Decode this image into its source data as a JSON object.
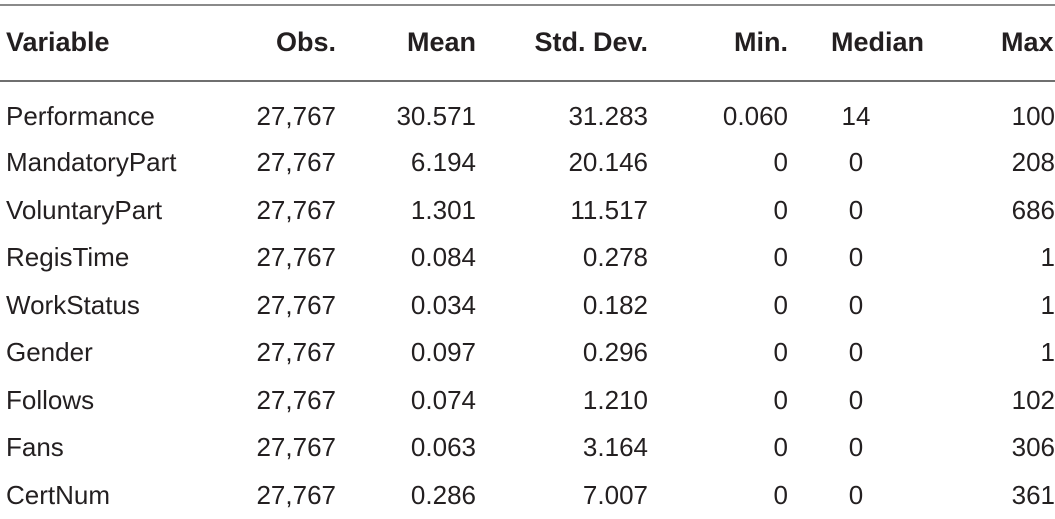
{
  "table": {
    "columns": [
      "Variable",
      "Obs.",
      "Mean",
      "Std. Dev.",
      "Min.",
      "Median",
      "Max."
    ],
    "rows": [
      [
        "Performance",
        "27,767",
        "30.571",
        "31.283",
        "0.060",
        "14",
        "100"
      ],
      [
        "MandatoryPart",
        "27,767",
        "6.194",
        "20.146",
        "0",
        "0",
        "208"
      ],
      [
        "VoluntaryPart",
        "27,767",
        "1.301",
        "11.517",
        "0",
        "0",
        "686"
      ],
      [
        "RegisTime",
        "27,767",
        "0.084",
        "0.278",
        "0",
        "0",
        "1"
      ],
      [
        "WorkStatus",
        "27,767",
        "0.034",
        "0.182",
        "0",
        "0",
        "1"
      ],
      [
        "Gender",
        "27,767",
        "0.097",
        "0.296",
        "0",
        "0",
        "1"
      ],
      [
        "Follows",
        "27,767",
        "0.074",
        "1.210",
        "0",
        "0",
        "102"
      ],
      [
        "Fans",
        "27,767",
        "0.063",
        "3.164",
        "0",
        "0",
        "306"
      ],
      [
        "CertNum",
        "27,767",
        "0.286",
        "7.007",
        "0",
        "0",
        "361"
      ]
    ]
  }
}
